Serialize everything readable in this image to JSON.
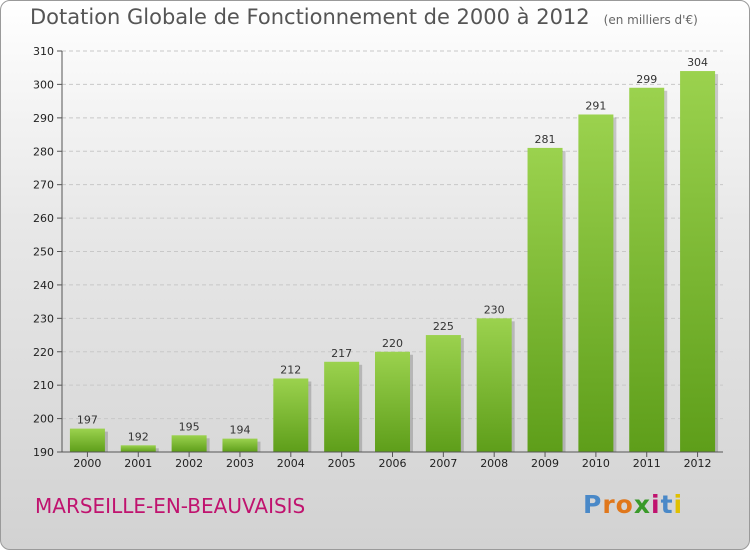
{
  "header": {
    "title": "Dotation Globale de Fonctionnement de 2000 à 2012",
    "subtitle": "(en milliers d'€)"
  },
  "footer": {
    "commune": "MARSEILLE-EN-BEAUVAISIS",
    "logo_text": "Proxiti",
    "logo_colors": [
      "#4a89c8",
      "#e0771b",
      "#e0771b",
      "#3a9a2a",
      "#c0136f",
      "#4a89c8",
      "#e0c000"
    ]
  },
  "colors": {
    "bar_top": "#9bd24e",
    "bar_bottom": "#5e9e1a",
    "grid": "#c8c8c8",
    "title": "#555555",
    "commune": "#c0136f"
  },
  "chart_data": {
    "type": "bar",
    "categories": [
      "2000",
      "2001",
      "2002",
      "2003",
      "2004",
      "2005",
      "2006",
      "2007",
      "2008",
      "2009",
      "2010",
      "2011",
      "2012"
    ],
    "values": [
      197,
      192,
      195,
      194,
      212,
      217,
      220,
      225,
      230,
      281,
      291,
      299,
      304
    ],
    "ylim": [
      190,
      310
    ],
    "yticks": [
      190,
      200,
      210,
      220,
      230,
      240,
      250,
      260,
      270,
      280,
      290,
      300,
      310
    ],
    "grid": true,
    "data_labels": true
  }
}
